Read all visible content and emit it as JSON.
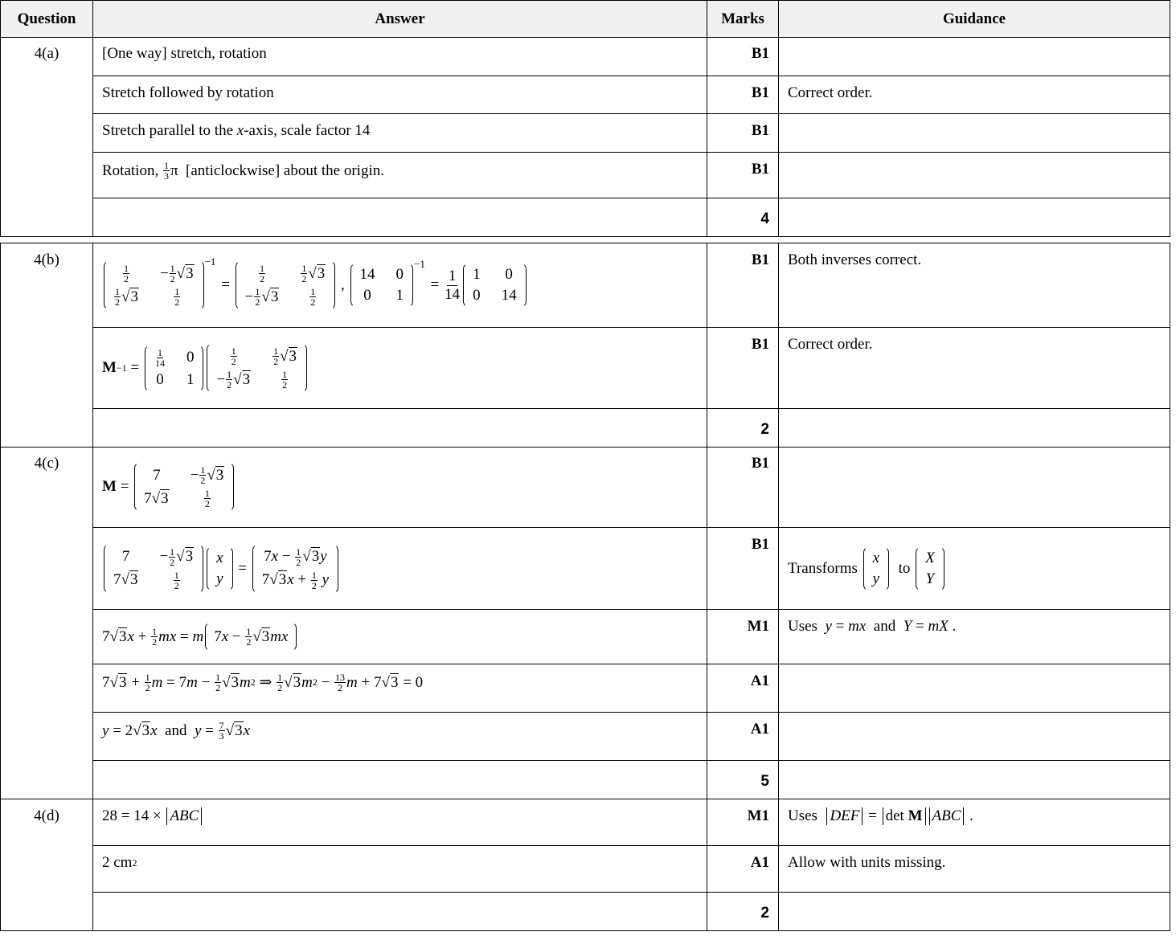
{
  "header": {
    "question": "Question",
    "answer": "Answer",
    "marks": "Marks",
    "guidance": "Guidance"
  },
  "questions": [
    {
      "label": "4(a)",
      "rows": [
        {
          "answer": [
            "[One way] stretch, rotation"
          ],
          "marks": "B1",
          "guidance": []
        },
        {
          "answer": [
            "Stretch followed by rotation"
          ],
          "marks": "B1",
          "guidance": [
            "Correct order."
          ]
        },
        {
          "answer": [
            "Stretch parallel to the ",
            {
              "i": "x"
            },
            "-axis, scale factor 14"
          ],
          "marks": "B1",
          "guidance": []
        },
        {
          "answer": [
            "Rotation, ",
            {
              "f": [
                "1",
                "3"
              ]
            },
            "π  [anticlockwise] about the origin."
          ],
          "marks": "B1",
          "guidance": []
        },
        {
          "answer": [],
          "marks": "4",
          "total": true,
          "guidance": []
        }
      ]
    },
    {
      "label": "4(b)",
      "rows": [
        {
          "answer": [
            {
              "m": [
                [
                  [
                    {
                      "f": [
                        "1",
                        "2"
                      ]
                    }
                  ],
                  [
                    "−",
                    {
                      "f": [
                        "1",
                        "2"
                      ]
                    },
                    {
                      "sq": "3"
                    }
                  ]
                ],
                [
                  [
                    {
                      "f": [
                        "1",
                        "2"
                      ]
                    },
                    {
                      "sq": "3"
                    }
                  ],
                  [
                    {
                      "f": [
                        "1",
                        "2"
                      ]
                    }
                  ]
                ]
              ],
              "sup": "−1"
            },
            " = ",
            {
              "m": [
                [
                  [
                    {
                      "f": [
                        "1",
                        "2"
                      ]
                    }
                  ],
                  [
                    {
                      "f": [
                        "1",
                        "2"
                      ]
                    },
                    {
                      "sq": "3"
                    }
                  ]
                ],
                [
                  [
                    "−",
                    {
                      "f": [
                        "1",
                        "2"
                      ]
                    },
                    {
                      "sq": "3"
                    }
                  ],
                  [
                    {
                      "f": [
                        "1",
                        "2"
                      ]
                    }
                  ]
                ]
              ]
            },
            " , ",
            {
              "m": [
                [
                  [
                    "14"
                  ],
                  [
                    "0"
                  ]
                ],
                [
                  [
                    "0"
                  ],
                  [
                    "1"
                  ]
                ]
              ],
              "sup": "−1"
            },
            " = ",
            {
              "F": [
                "1",
                "14"
              ]
            },
            {
              "m": [
                [
                  [
                    "1"
                  ],
                  [
                    "0"
                  ]
                ],
                [
                  [
                    "0"
                  ],
                  [
                    "14"
                  ]
                ]
              ]
            }
          ],
          "marks": "B1",
          "guidance": [
            "Both inverses correct."
          ]
        },
        {
          "answer": [
            {
              "b": "M"
            },
            {
              "sup": "−1"
            },
            " = ",
            {
              "m": [
                [
                  [
                    {
                      "f": [
                        "1",
                        "14"
                      ]
                    }
                  ],
                  [
                    "0"
                  ]
                ],
                [
                  [
                    "0"
                  ],
                  [
                    "1"
                  ]
                ]
              ]
            },
            {
              "m": [
                [
                  [
                    {
                      "f": [
                        "1",
                        "2"
                      ]
                    }
                  ],
                  [
                    {
                      "f": [
                        "1",
                        "2"
                      ]
                    },
                    {
                      "sq": "3"
                    }
                  ]
                ],
                [
                  [
                    "−",
                    {
                      "f": [
                        "1",
                        "2"
                      ]
                    },
                    {
                      "sq": "3"
                    }
                  ],
                  [
                    {
                      "f": [
                        "1",
                        "2"
                      ]
                    }
                  ]
                ]
              ]
            }
          ],
          "marks": "B1",
          "guidance": [
            "Correct order."
          ]
        },
        {
          "answer": [],
          "marks": "2",
          "total": true,
          "guidance": []
        }
      ]
    },
    {
      "label": "4(c)",
      "rows": [
        {
          "answer": [
            {
              "b": "M"
            },
            " = ",
            {
              "m": [
                [
                  [
                    "7"
                  ],
                  [
                    "−",
                    {
                      "f": [
                        "1",
                        "2"
                      ]
                    },
                    {
                      "sq": "3"
                    }
                  ]
                ],
                [
                  [
                    "7",
                    {
                      "sq": "3"
                    }
                  ],
                  [
                    {
                      "f": [
                        "1",
                        "2"
                      ]
                    }
                  ]
                ]
              ]
            }
          ],
          "marks": "B1",
          "guidance": []
        },
        {
          "answer": [
            {
              "m": [
                [
                  [
                    "7"
                  ],
                  [
                    "−",
                    {
                      "f": [
                        "1",
                        "2"
                      ]
                    },
                    {
                      "sq": "3"
                    }
                  ]
                ],
                [
                  [
                    "7",
                    {
                      "sq": "3"
                    }
                  ],
                  [
                    {
                      "f": [
                        "1",
                        "2"
                      ]
                    }
                  ]
                ]
              ]
            },
            {
              "m": [
                [
                  [
                    {
                      "i": "x"
                    }
                  ]
                ],
                [
                  [
                    {
                      "i": "y"
                    }
                  ]
                ]
              ]
            },
            " = ",
            {
              "m": [
                [
                  [
                    "7",
                    {
                      "i": "x"
                    },
                    " − ",
                    {
                      "f": [
                        "1",
                        "2"
                      ]
                    },
                    {
                      "sq": "3"
                    },
                    {
                      "i": "y"
                    }
                  ]
                ],
                [
                  [
                    "7",
                    {
                      "sq": "3"
                    },
                    {
                      "i": "x"
                    },
                    " + ",
                    {
                      "f": [
                        "1",
                        "2"
                      ]
                    },
                    " ",
                    {
                      "i": "y"
                    }
                  ]
                ]
              ]
            }
          ],
          "marks": "B1",
          "guidance": [
            "Transforms ",
            {
              "m": [
                [
                  [
                    {
                      "i": "x"
                    }
                  ]
                ],
                [
                  [
                    {
                      "i": "y"
                    }
                  ]
                ]
              ]
            },
            "  to ",
            {
              "m": [
                [
                  [
                    {
                      "i": "X"
                    }
                  ]
                ],
                [
                  [
                    {
                      "i": "Y"
                    }
                  ]
                ]
              ]
            }
          ],
          "guidance_mid": true
        },
        {
          "answer": [
            "7",
            {
              "sq": "3"
            },
            {
              "i": "x"
            },
            " + ",
            {
              "f": [
                "1",
                "2"
              ]
            },
            {
              "i": "mx"
            },
            " = ",
            {
              "i": "m"
            },
            {
              "p": [
                "7",
                {
                  "i": "x"
                },
                " − ",
                {
                  "f": [
                    "1",
                    "2"
                  ]
                },
                {
                  "sq": "3"
                },
                {
                  "i": "mx"
                }
              ]
            }
          ],
          "marks": "M1",
          "guidance": [
            "Uses  ",
            {
              "i": "y"
            },
            " = ",
            {
              "i": "mx"
            },
            "  and  ",
            {
              "i": "Y"
            },
            " = ",
            {
              "i": "mX"
            },
            " ."
          ]
        },
        {
          "answer": [
            "7",
            {
              "sq": "3"
            },
            " + ",
            {
              "f": [
                "1",
                "2"
              ]
            },
            {
              "i": "m"
            },
            " = 7",
            {
              "i": "m"
            },
            " − ",
            {
              "f": [
                "1",
                "2"
              ]
            },
            {
              "sq": "3"
            },
            {
              "i": "m"
            },
            {
              "sup": "2"
            },
            " ⇒ ",
            {
              "f": [
                "1",
                "2"
              ]
            },
            {
              "sq": "3"
            },
            {
              "i": "m"
            },
            {
              "sup": "2"
            },
            " − ",
            {
              "f": [
                "13",
                "2"
              ]
            },
            {
              "i": "m"
            },
            " + 7",
            {
              "sq": "3"
            },
            " = 0"
          ],
          "marks": "A1",
          "guidance": []
        },
        {
          "answer": [
            {
              "i": "y"
            },
            " = 2",
            {
              "sq": "3"
            },
            {
              "i": "x"
            },
            "  and  ",
            {
              "i": "y"
            },
            " = ",
            {
              "f": [
                "7",
                "3"
              ]
            },
            {
              "sq": "3"
            },
            {
              "i": "x"
            }
          ],
          "marks": "A1",
          "guidance": []
        },
        {
          "answer": [],
          "marks": "5",
          "total": true,
          "guidance": []
        }
      ]
    },
    {
      "label": "4(d)",
      "rows": [
        {
          "answer": [
            "28 = 14 × ",
            {
              "abs": [
                {
                  "i": "ABC"
                }
              ]
            }
          ],
          "marks": "M1",
          "guidance": [
            "Uses  ",
            {
              "abs": [
                {
                  "i": "DEF"
                }
              ]
            },
            " = ",
            {
              "abs": [
                "det ",
                {
                  "b": "M"
                }
              ]
            },
            {
              "abs": [
                {
                  "i": "ABC"
                }
              ]
            },
            " ."
          ]
        },
        {
          "answer": [
            "2 cm",
            {
              "sup": "2"
            }
          ],
          "marks": "A1",
          "guidance": [
            "Allow with units missing."
          ]
        },
        {
          "answer": [],
          "marks": "2",
          "total": true,
          "guidance": []
        }
      ]
    }
  ]
}
